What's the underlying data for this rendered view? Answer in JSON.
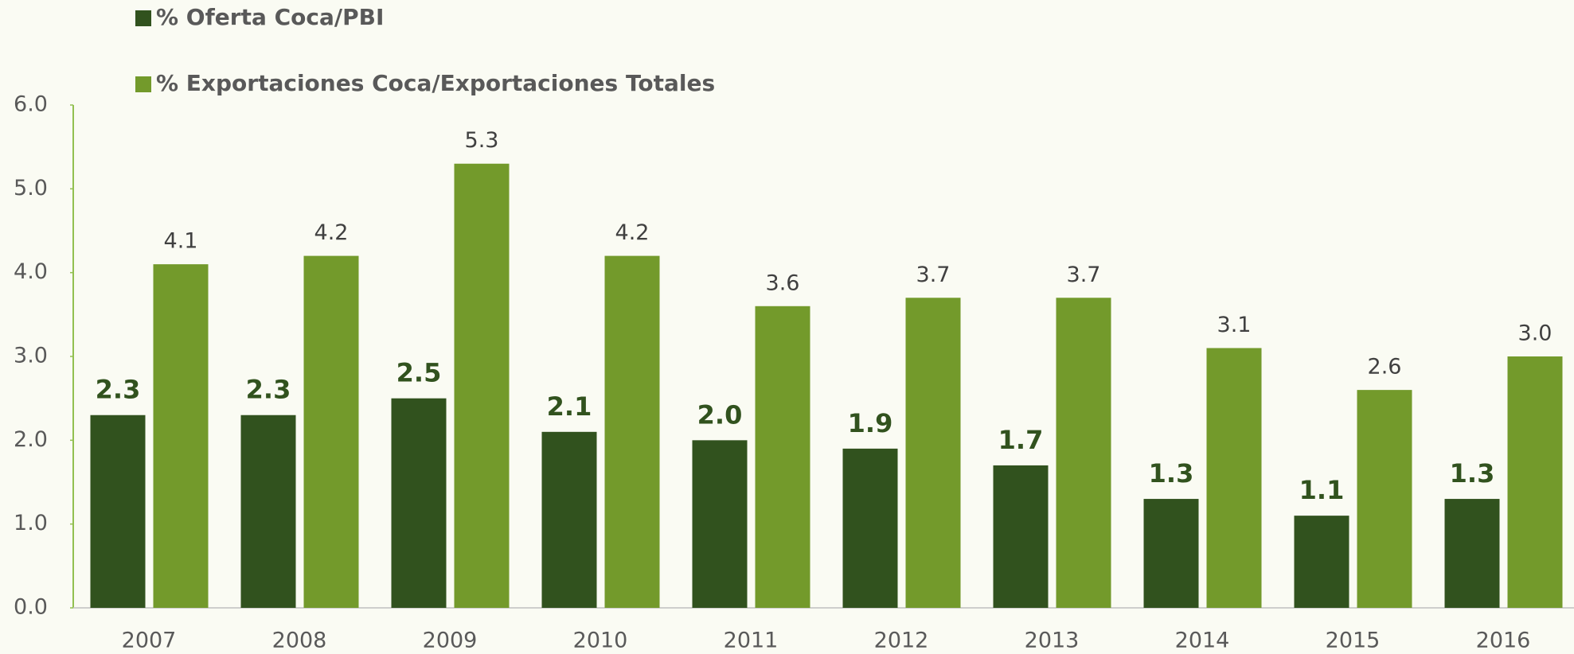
{
  "chart_data": {
    "type": "bar",
    "categories": [
      "2007",
      "2008",
      "2009",
      "2010",
      "2011",
      "2012",
      "2013",
      "2014",
      "2015",
      "2016"
    ],
    "series": [
      {
        "name": "% Oferta Coca/PBI",
        "color": "#31521e",
        "values": [
          2.3,
          2.3,
          2.5,
          2.1,
          2.0,
          1.9,
          1.7,
          1.3,
          1.1,
          1.3
        ],
        "value_labels": [
          "2.3",
          "2.3",
          "2.5",
          "2.1",
          "2.0",
          "1.9",
          "1.7",
          "1.3",
          "1.1",
          "1.3"
        ]
      },
      {
        "name": "% Exportaciones Coca/Exportaciones Totales",
        "color": "#739a2b",
        "values": [
          4.1,
          4.2,
          5.3,
          4.2,
          3.6,
          3.7,
          3.7,
          3.1,
          2.6,
          3.0
        ],
        "value_labels": [
          "4.1",
          "4.2",
          "5.3",
          "4.2",
          "3.6",
          "3.7",
          "3.7",
          "3.1",
          "2.6",
          "3.0"
        ]
      }
    ],
    "ylim": [
      0,
      6
    ],
    "yticks": [
      {
        "value": 0,
        "label": "0.0"
      },
      {
        "value": 1,
        "label": "1.0"
      },
      {
        "value": 2,
        "label": "2.0"
      },
      {
        "value": 3,
        "label": "3.0"
      },
      {
        "value": 4,
        "label": "4.0"
      },
      {
        "value": 5,
        "label": "5.0"
      },
      {
        "value": 6,
        "label": "6.0"
      }
    ],
    "grid": false
  }
}
